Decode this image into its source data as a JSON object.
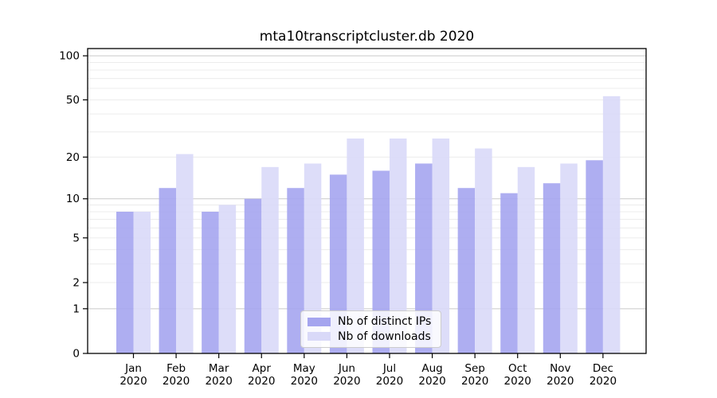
{
  "title": "mta10transcriptcluster.db 2020",
  "chart_data": {
    "type": "bar",
    "title": "mta10transcriptcluster.db 2020",
    "xlabel": "",
    "ylabel": "",
    "categories": [
      "Jan",
      "Feb",
      "Mar",
      "Apr",
      "May",
      "Jun",
      "Jul",
      "Aug",
      "Sep",
      "Oct",
      "Nov",
      "Dec"
    ],
    "category_year": "2020",
    "series": [
      {
        "name": "Nb of distinct IPs",
        "color": "#a5a5ef",
        "values": [
          8,
          12,
          8,
          10,
          12,
          15,
          16,
          18,
          12,
          11,
          13,
          19
        ]
      },
      {
        "name": "Nb of downloads",
        "color": "#d9d9f8",
        "values": [
          8,
          21,
          9,
          17,
          18,
          27,
          27,
          27,
          23,
          17,
          18,
          53
        ]
      }
    ],
    "yscale": "log1p",
    "ylim": [
      0,
      112
    ],
    "y_major_ticks": [
      0,
      1,
      2,
      5,
      10,
      20,
      50,
      100
    ],
    "y_minor_gridline_values": [
      2,
      3,
      4,
      5,
      6,
      7,
      8,
      9,
      20,
      30,
      40,
      50,
      60,
      70,
      80,
      90
    ],
    "y_emphasized_gridline_values": [
      1,
      10,
      100
    ],
    "grid": true,
    "legend_position": "lower center",
    "grid_color_minor": "#ececec",
    "grid_color_major": "#c9c9c9",
    "axis_color": "#000000",
    "tick_label_color": "#000000"
  },
  "legend": {
    "items": [
      {
        "label": "Nb of distinct IPs"
      },
      {
        "label": "Nb of downloads"
      }
    ]
  }
}
